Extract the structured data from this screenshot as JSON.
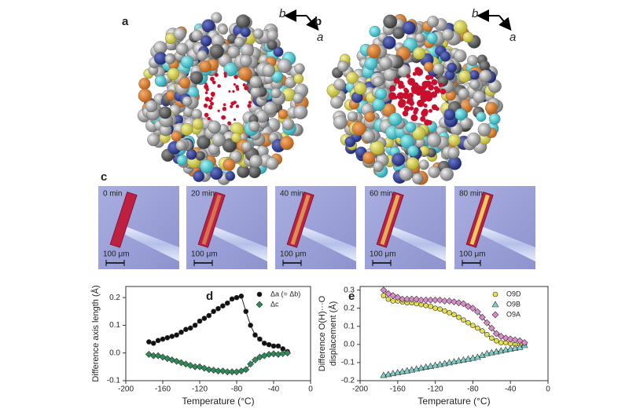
{
  "panels": [
    {
      "label": "a",
      "axis_1": "b",
      "axis_2": "a"
    },
    {
      "label": "b",
      "axis_1": "b",
      "axis_2": "a"
    }
  ],
  "photo_panel": {
    "label": "c",
    "frames": [
      {
        "time": "0 min",
        "scale": "100 μm"
      },
      {
        "time": "20 min",
        "scale": "100 μm"
      },
      {
        "time": "40 min",
        "scale": "100 μm"
      },
      {
        "time": "60 min",
        "scale": "100 μm"
      },
      {
        "time": "80 min",
        "scale": "100 μm"
      }
    ]
  },
  "chart_data": [
    {
      "type": "line",
      "label": "d",
      "x_label": "Temperature (°C)",
      "y_label": [
        "Difference axis length (Å)"
      ],
      "x": [
        -175,
        -170,
        -165,
        -160,
        -155,
        -150,
        -145,
        -140,
        -135,
        -130,
        -125,
        -120,
        -115,
        -110,
        -105,
        -100,
        -95,
        -90,
        -85,
        -80,
        -75,
        -70,
        -65,
        -60,
        -55,
        -50,
        -45,
        -40,
        -35,
        -30,
        -25
      ],
      "series": [
        {
          "name": "Δa (= Δb)",
          "color": "#111111",
          "marker": "circle",
          "values": [
            0.04,
            0.035,
            0.045,
            0.05,
            0.055,
            0.06,
            0.065,
            0.075,
            0.085,
            0.09,
            0.1,
            0.115,
            0.125,
            0.135,
            0.15,
            0.16,
            0.17,
            0.18,
            0.195,
            0.2,
            0.205,
            0.15,
            0.1,
            0.065,
            0.05,
            0.035,
            0.03,
            0.025,
            0.025,
            0.015,
            0.005
          ]
        },
        {
          "name": "Δc",
          "color": "#2e8b57",
          "marker": "diamond",
          "values": [
            -0.005,
            -0.01,
            -0.01,
            -0.015,
            -0.02,
            -0.025,
            -0.03,
            -0.035,
            -0.04,
            -0.045,
            -0.05,
            -0.05,
            -0.055,
            -0.06,
            -0.062,
            -0.065,
            -0.065,
            -0.068,
            -0.068,
            -0.068,
            -0.065,
            -0.06,
            -0.04,
            -0.025,
            -0.015,
            -0.01,
            -0.005,
            -0.003,
            -0.005,
            -0.002,
            0
          ]
        }
      ],
      "xlim": [
        -200,
        0
      ],
      "ylim": [
        -0.1,
        0.24
      ],
      "xticks": [
        -200,
        -160,
        -120,
        -80,
        -40,
        0
      ],
      "yticks": [
        -0.1,
        {
          "value": 0,
          "label": "0.0"
        },
        0.1,
        0.2
      ]
    },
    {
      "type": "line",
      "label": "e",
      "x_label": "Temperature (°C)",
      "y_label": [
        "Difference O(H)···O",
        "displacement (Å)"
      ],
      "x": [
        -175,
        -170,
        -165,
        -160,
        -155,
        -150,
        -145,
        -140,
        -135,
        -130,
        -125,
        -120,
        -115,
        -110,
        -105,
        -100,
        -95,
        -90,
        -85,
        -80,
        -75,
        -70,
        -65,
        -60,
        -55,
        -50,
        -45,
        -40,
        -35,
        -30,
        -25
      ],
      "series": [
        {
          "name": "O9D",
          "color": "#e8e040",
          "marker": "circle",
          "values": [
            0.27,
            0.25,
            0.24,
            0.24,
            0.235,
            0.23,
            0.23,
            0.225,
            0.22,
            0.215,
            0.21,
            0.2,
            0.195,
            0.185,
            0.175,
            0.165,
            0.15,
            0.135,
            0.12,
            0.105,
            0.09,
            0.075,
            0.055,
            0.035,
            0.02,
            0.01,
            0.01,
            0.005,
            0,
            0,
            0
          ]
        },
        {
          "name": "O9B",
          "color": "#7fcfc8",
          "marker": "triangle",
          "values": [
            -0.17,
            -0.165,
            -0.16,
            -0.155,
            -0.15,
            -0.145,
            -0.14,
            -0.135,
            -0.13,
            -0.125,
            -0.12,
            -0.115,
            -0.11,
            -0.105,
            -0.1,
            -0.095,
            -0.09,
            -0.085,
            -0.08,
            -0.075,
            -0.07,
            -0.06,
            -0.05,
            -0.045,
            -0.04,
            -0.035,
            -0.03,
            -0.025,
            -0.02,
            -0.015,
            -0.005
          ]
        },
        {
          "name": "O9A",
          "color": "#d98cc8",
          "marker": "diamond",
          "values": [
            0.3,
            0.28,
            0.27,
            0.26,
            0.25,
            0.25,
            0.25,
            0.25,
            0.245,
            0.245,
            0.245,
            0.245,
            0.245,
            0.24,
            0.24,
            0.235,
            0.23,
            0.225,
            0.21,
            0.2,
            0.18,
            0.15,
            0.12,
            0.09,
            0.06,
            0.045,
            0.035,
            0.03,
            0.025,
            0.02,
            0.01
          ]
        }
      ],
      "xlim": [
        -200,
        0
      ],
      "ylim": [
        -0.2,
        0.32
      ],
      "xticks": [
        -200,
        -160,
        -120,
        -80,
        -40,
        0
      ],
      "yticks": [
        -0.2,
        -0.1,
        {
          "value": 0,
          "label": "0.0"
        },
        0.1,
        0.2,
        0.3
      ]
    }
  ]
}
